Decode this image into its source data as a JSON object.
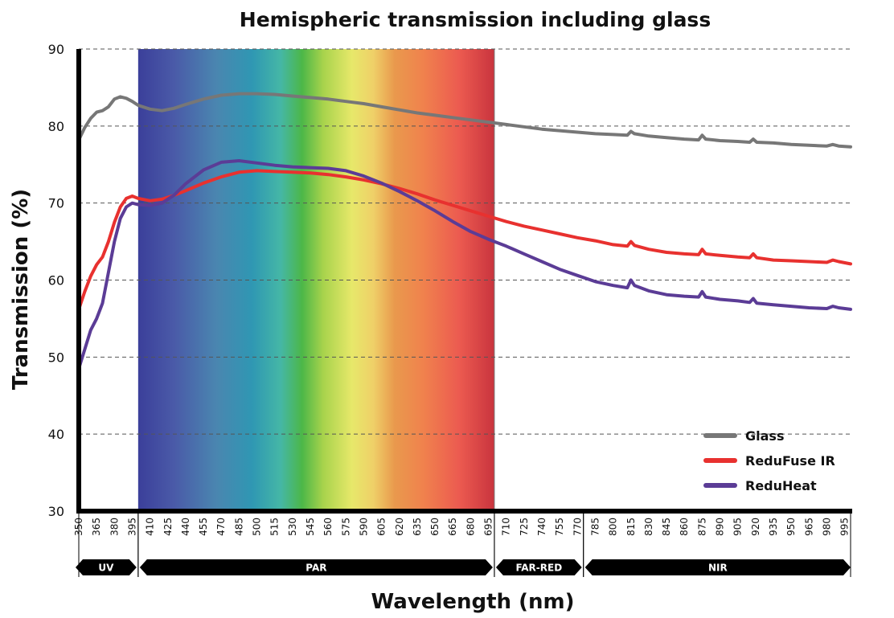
{
  "chart_data": {
    "type": "line",
    "title": "Hemispheric transmission including glass",
    "xlabel": "Wavelength (nm)",
    "ylabel": "Transmission (%)",
    "xlim": [
      350,
      1000
    ],
    "ylim": [
      30,
      90
    ],
    "yticks": [
      30,
      40,
      50,
      60,
      70,
      80,
      90
    ],
    "xticks": [
      350,
      365,
      380,
      395,
      410,
      425,
      440,
      455,
      470,
      485,
      500,
      515,
      530,
      545,
      560,
      575,
      590,
      605,
      620,
      635,
      650,
      665,
      680,
      695,
      710,
      725,
      740,
      755,
      770,
      785,
      800,
      815,
      830,
      845,
      860,
      875,
      890,
      905,
      920,
      935,
      950,
      965,
      980,
      995
    ],
    "grid": true,
    "legend_position": "bottom-right",
    "spectrum_range": [
      400,
      700
    ],
    "bands": [
      {
        "label": "UV",
        "start": 350,
        "end": 400
      },
      {
        "label": "PAR",
        "start": 400,
        "end": 700
      },
      {
        "label": "FAR-RED",
        "start": 700,
        "end": 775
      },
      {
        "label": "NIR",
        "start": 775,
        "end": 1000
      }
    ],
    "series": [
      {
        "name": "Glass",
        "color": "#777777",
        "x": [
          350,
          355,
          360,
          365,
          370,
          375,
          380,
          385,
          390,
          395,
          400,
          410,
          420,
          430,
          440,
          455,
          470,
          485,
          500,
          515,
          530,
          545,
          560,
          575,
          590,
          605,
          620,
          635,
          650,
          665,
          680,
          695,
          710,
          725,
          740,
          755,
          770,
          785,
          800,
          812,
          815,
          818,
          830,
          845,
          860,
          872,
          875,
          878,
          890,
          905,
          915,
          918,
          921,
          935,
          950,
          965,
          980,
          985,
          990,
          1000
        ],
        "y": [
          78.2,
          79.8,
          81.0,
          81.8,
          82.0,
          82.5,
          83.5,
          83.8,
          83.6,
          83.2,
          82.7,
          82.2,
          82.0,
          82.3,
          82.8,
          83.5,
          84.0,
          84.2,
          84.2,
          84.1,
          83.9,
          83.7,
          83.5,
          83.2,
          82.9,
          82.5,
          82.1,
          81.7,
          81.4,
          81.1,
          80.8,
          80.5,
          80.2,
          79.9,
          79.6,
          79.4,
          79.2,
          79.0,
          78.9,
          78.8,
          79.3,
          79.0,
          78.7,
          78.5,
          78.3,
          78.2,
          78.8,
          78.3,
          78.1,
          78.0,
          77.9,
          78.3,
          77.9,
          77.8,
          77.6,
          77.5,
          77.4,
          77.6,
          77.4,
          77.3
        ]
      },
      {
        "name": "ReduFuse IR",
        "color": "#e8312f",
        "x": [
          350,
          355,
          360,
          365,
          370,
          375,
          380,
          385,
          390,
          395,
          400,
          410,
          420,
          430,
          440,
          455,
          470,
          485,
          500,
          515,
          530,
          545,
          560,
          575,
          590,
          605,
          620,
          635,
          650,
          665,
          680,
          695,
          710,
          725,
          740,
          755,
          770,
          785,
          800,
          812,
          815,
          818,
          830,
          845,
          860,
          872,
          875,
          878,
          890,
          905,
          915,
          918,
          921,
          935,
          950,
          965,
          980,
          985,
          990,
          1000
        ],
        "y": [
          56.2,
          58.5,
          60.5,
          62.0,
          63.0,
          65.0,
          67.5,
          69.5,
          70.6,
          70.9,
          70.6,
          70.3,
          70.5,
          71.0,
          71.6,
          72.6,
          73.4,
          74.0,
          74.2,
          74.1,
          74.0,
          73.9,
          73.7,
          73.4,
          73.0,
          72.5,
          71.9,
          71.2,
          70.4,
          69.7,
          69.0,
          68.3,
          67.6,
          67.0,
          66.5,
          66.0,
          65.5,
          65.1,
          64.6,
          64.4,
          65.0,
          64.5,
          64.0,
          63.6,
          63.4,
          63.3,
          64.0,
          63.4,
          63.2,
          63.0,
          62.9,
          63.4,
          62.9,
          62.6,
          62.5,
          62.4,
          62.3,
          62.6,
          62.4,
          62.1
        ]
      },
      {
        "name": "ReduHeat",
        "color": "#5b3c96",
        "x": [
          350,
          355,
          360,
          365,
          370,
          375,
          380,
          385,
          390,
          395,
          400,
          410,
          420,
          430,
          440,
          455,
          470,
          485,
          500,
          515,
          530,
          545,
          560,
          575,
          590,
          605,
          620,
          635,
          650,
          665,
          680,
          695,
          710,
          725,
          740,
          755,
          770,
          785,
          800,
          812,
          815,
          818,
          830,
          845,
          860,
          872,
          875,
          878,
          890,
          905,
          915,
          918,
          921,
          935,
          950,
          965,
          980,
          985,
          990,
          1000
        ],
        "y": [
          48.5,
          51.0,
          53.5,
          55.0,
          57.0,
          61.0,
          65.0,
          68.0,
          69.5,
          70.0,
          69.8,
          69.7,
          70.0,
          71.0,
          72.5,
          74.3,
          75.3,
          75.5,
          75.2,
          74.9,
          74.7,
          74.6,
          74.5,
          74.2,
          73.5,
          72.6,
          71.5,
          70.3,
          69.0,
          67.6,
          66.3,
          65.3,
          64.4,
          63.4,
          62.4,
          61.4,
          60.6,
          59.8,
          59.3,
          59.0,
          60.0,
          59.3,
          58.6,
          58.1,
          57.9,
          57.8,
          58.5,
          57.8,
          57.5,
          57.3,
          57.1,
          57.6,
          57.0,
          56.8,
          56.6,
          56.4,
          56.3,
          56.6,
          56.4,
          56.2
        ]
      }
    ]
  }
}
